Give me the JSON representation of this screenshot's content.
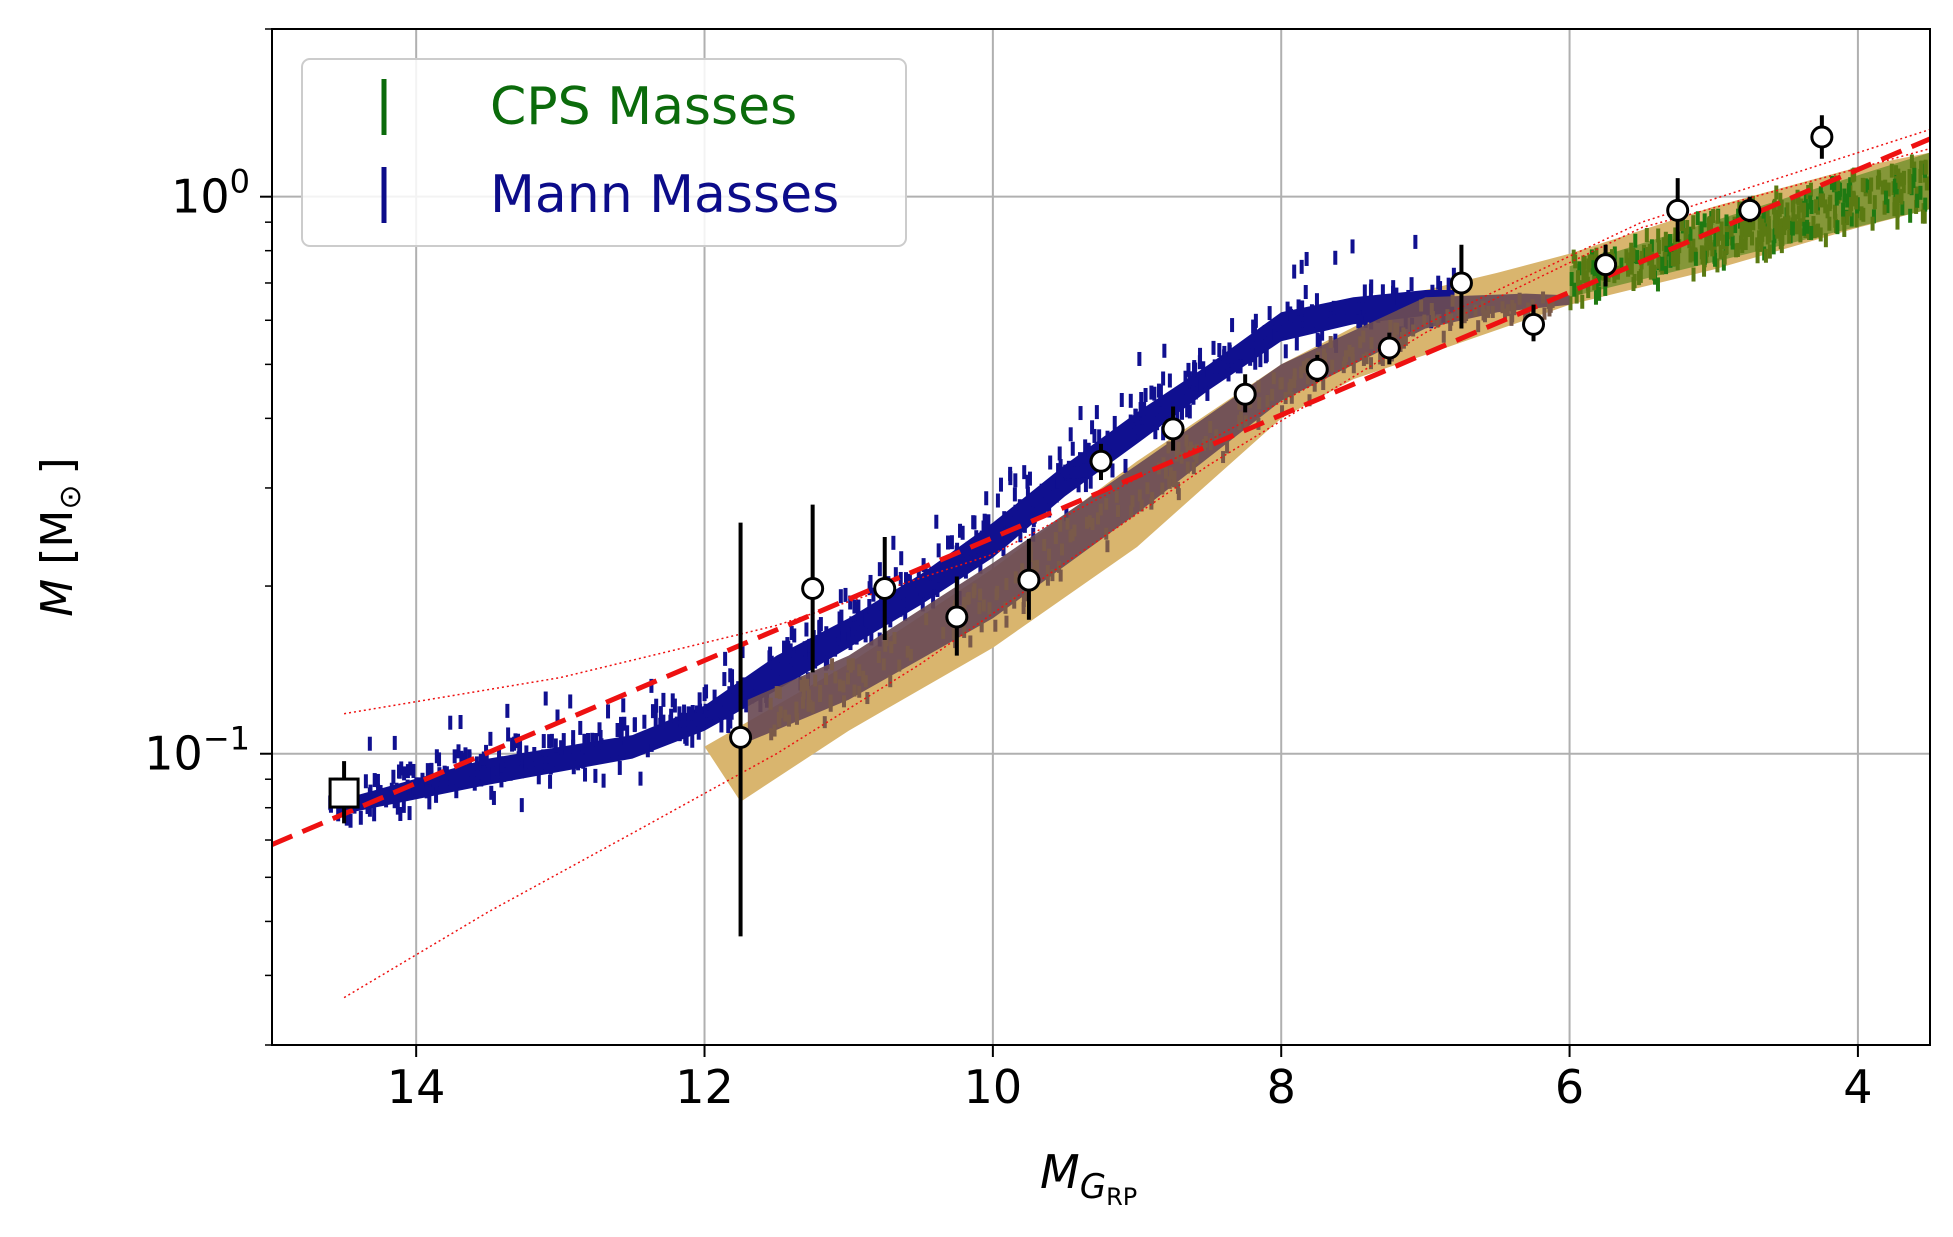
{
  "chart_data": {
    "type": "scatter",
    "xlabel_main": "M",
    "xlabel_sub": "G",
    "xlabel_subsub": "RP",
    "ylabel": "M [M⊙]",
    "ylabel_italic": "M",
    "ylabel_rest": " [M",
    "ylabel_sun": "⊙",
    "ylabel_close": "]",
    "xlim": [
      15.0,
      3.5
    ],
    "ylim": [
      0.03,
      2.0
    ],
    "yscale": "log",
    "grid": true,
    "legend_position": "upper-left",
    "x_ticks": [
      {
        "value": 14,
        "label": "14"
      },
      {
        "value": 12,
        "label": "12"
      },
      {
        "value": 10,
        "label": "10"
      },
      {
        "value": 8,
        "label": "8"
      },
      {
        "value": 6,
        "label": "6"
      },
      {
        "value": 4,
        "label": "4"
      }
    ],
    "y_ticks": [
      {
        "value": 1.0,
        "base": "10",
        "exp": "0"
      },
      {
        "value": 0.1,
        "base": "10",
        "exp": "−1"
      }
    ],
    "legend": [
      {
        "label": "CPS Masses",
        "color": "#0b6b0b"
      },
      {
        "label": "Mann Masses",
        "color": "#0c0c8a"
      }
    ],
    "colors": {
      "cps": "#3f7d0f",
      "mann": "#101090",
      "band": "#d9b56e",
      "overlap": "#6a4b55",
      "fit": "#ee1111",
      "points": "#000000"
    },
    "binned_points": [
      {
        "x": 11.75,
        "y": 0.107,
        "ylo": 0.047,
        "yhi": 0.26
      },
      {
        "x": 11.25,
        "y": 0.198,
        "ylo": 0.14,
        "yhi": 0.28
      },
      {
        "x": 10.75,
        "y": 0.198,
        "ylo": 0.16,
        "yhi": 0.245
      },
      {
        "x": 10.25,
        "y": 0.176,
        "ylo": 0.15,
        "yhi": 0.208
      },
      {
        "x": 9.75,
        "y": 0.205,
        "ylo": 0.174,
        "yhi": 0.243
      },
      {
        "x": 9.25,
        "y": 0.335,
        "ylo": 0.31,
        "yhi": 0.36
      },
      {
        "x": 8.75,
        "y": 0.383,
        "ylo": 0.35,
        "yhi": 0.42
      },
      {
        "x": 8.25,
        "y": 0.442,
        "ylo": 0.41,
        "yhi": 0.48
      },
      {
        "x": 7.75,
        "y": 0.49,
        "ylo": 0.465,
        "yhi": 0.52
      },
      {
        "x": 7.25,
        "y": 0.535,
        "ylo": 0.5,
        "yhi": 0.57
      },
      {
        "x": 6.75,
        "y": 0.7,
        "ylo": 0.58,
        "yhi": 0.82
      },
      {
        "x": 6.25,
        "y": 0.59,
        "ylo": 0.55,
        "yhi": 0.64
      },
      {
        "x": 5.75,
        "y": 0.755,
        "ylo": 0.69,
        "yhi": 0.82
      },
      {
        "x": 5.25,
        "y": 0.945,
        "ylo": 0.83,
        "yhi": 1.08
      },
      {
        "x": 4.75,
        "y": 0.945,
        "ylo": 0.9,
        "yhi": 1.0
      },
      {
        "x": 4.25,
        "y": 1.28,
        "ylo": 1.17,
        "yhi": 1.4
      }
    ],
    "square_point": {
      "x": 14.5,
      "y": 0.085,
      "ylo": 0.075,
      "yhi": 0.097
    },
    "fit_line": {
      "x": [
        15.0,
        3.5
      ],
      "y": [
        0.0687,
        1.27
      ]
    },
    "fit_upper": [
      {
        "x": 14.5,
        "y": 0.118
      },
      {
        "x": 13.0,
        "y": 0.137
      },
      {
        "x": 11.5,
        "y": 0.17
      },
      {
        "x": 10.0,
        "y": 0.228
      },
      {
        "x": 8.5,
        "y": 0.365
      },
      {
        "x": 7.0,
        "y": 0.59
      },
      {
        "x": 5.5,
        "y": 0.9
      },
      {
        "x": 3.5,
        "y": 1.32
      }
    ],
    "fit_lower": [
      {
        "x": 14.5,
        "y": 0.0365
      },
      {
        "x": 13.5,
        "y": 0.052
      },
      {
        "x": 12.5,
        "y": 0.072
      },
      {
        "x": 11.5,
        "y": 0.1
      },
      {
        "x": 10.5,
        "y": 0.145
      },
      {
        "x": 9.5,
        "y": 0.22
      },
      {
        "x": 8.5,
        "y": 0.33
      },
      {
        "x": 7.0,
        "y": 0.57
      },
      {
        "x": 5.5,
        "y": 0.88
      },
      {
        "x": 3.5,
        "y": 1.22
      }
    ],
    "band_upper": [
      {
        "x": 12.0,
        "y": 0.103
      },
      {
        "x": 11.0,
        "y": 0.145
      },
      {
        "x": 10.0,
        "y": 0.215
      },
      {
        "x": 9.0,
        "y": 0.335
      },
      {
        "x": 8.0,
        "y": 0.5
      },
      {
        "x": 7.0,
        "y": 0.68
      },
      {
        "x": 6.5,
        "y": 0.73
      },
      {
        "x": 6.0,
        "y": 0.79
      },
      {
        "x": 5.0,
        "y": 0.96
      },
      {
        "x": 4.0,
        "y": 1.13
      },
      {
        "x": 3.5,
        "y": 1.2
      }
    ],
    "band_lower": [
      {
        "x": 3.5,
        "y": 0.95
      },
      {
        "x": 4.0,
        "y": 0.88
      },
      {
        "x": 5.0,
        "y": 0.74
      },
      {
        "x": 6.0,
        "y": 0.64
      },
      {
        "x": 7.0,
        "y": 0.52
      },
      {
        "x": 7.5,
        "y": 0.47
      },
      {
        "x": 8.0,
        "y": 0.4
      },
      {
        "x": 9.0,
        "y": 0.235
      },
      {
        "x": 10.0,
        "y": 0.155
      },
      {
        "x": 11.0,
        "y": 0.11
      },
      {
        "x": 11.75,
        "y": 0.082
      }
    ],
    "mann_cloud_upper": [
      {
        "x": 14.5,
        "y": 0.083
      },
      {
        "x": 13.5,
        "y": 0.098
      },
      {
        "x": 12.5,
        "y": 0.108
      },
      {
        "x": 12.0,
        "y": 0.122
      },
      {
        "x": 11.5,
        "y": 0.15
      },
      {
        "x": 11.0,
        "y": 0.175
      },
      {
        "x": 10.5,
        "y": 0.21
      },
      {
        "x": 10.0,
        "y": 0.26
      },
      {
        "x": 9.5,
        "y": 0.33
      },
      {
        "x": 9.0,
        "y": 0.41
      },
      {
        "x": 8.5,
        "y": 0.5
      },
      {
        "x": 8.0,
        "y": 0.62
      },
      {
        "x": 7.5,
        "y": 0.66
      },
      {
        "x": 7.0,
        "y": 0.68
      },
      {
        "x": 6.8,
        "y": 0.68
      }
    ],
    "mann_cloud_lower": [
      {
        "x": 6.8,
        "y": 0.62
      },
      {
        "x": 7.5,
        "y": 0.59
      },
      {
        "x": 8.0,
        "y": 0.55
      },
      {
        "x": 8.5,
        "y": 0.45
      },
      {
        "x": 9.0,
        "y": 0.36
      },
      {
        "x": 9.5,
        "y": 0.29
      },
      {
        "x": 10.0,
        "y": 0.225
      },
      {
        "x": 10.5,
        "y": 0.185
      },
      {
        "x": 11.0,
        "y": 0.155
      },
      {
        "x": 11.5,
        "y": 0.13
      },
      {
        "x": 12.0,
        "y": 0.11
      },
      {
        "x": 12.5,
        "y": 0.098
      },
      {
        "x": 13.5,
        "y": 0.088
      },
      {
        "x": 14.5,
        "y": 0.078
      }
    ],
    "overlap_upper": [
      {
        "x": 11.7,
        "y": 0.125
      },
      {
        "x": 11.0,
        "y": 0.15
      },
      {
        "x": 10.0,
        "y": 0.22
      },
      {
        "x": 9.0,
        "y": 0.33
      },
      {
        "x": 8.0,
        "y": 0.5
      },
      {
        "x": 7.0,
        "y": 0.66
      },
      {
        "x": 6.3,
        "y": 0.67
      },
      {
        "x": 6.0,
        "y": 0.665
      }
    ],
    "overlap_lower": [
      {
        "x": 6.0,
        "y": 0.64
      },
      {
        "x": 6.5,
        "y": 0.62
      },
      {
        "x": 7.0,
        "y": 0.58
      },
      {
        "x": 8.0,
        "y": 0.43
      },
      {
        "x": 9.0,
        "y": 0.27
      },
      {
        "x": 10.0,
        "y": 0.175
      },
      {
        "x": 11.0,
        "y": 0.125
      },
      {
        "x": 11.7,
        "y": 0.105
      }
    ],
    "cps_cloud": {
      "x_range": [
        6.0,
        3.5
      ],
      "y_at_6": [
        0.66,
        0.75
      ],
      "y_at_3_5": [
        0.95,
        1.2
      ]
    }
  }
}
